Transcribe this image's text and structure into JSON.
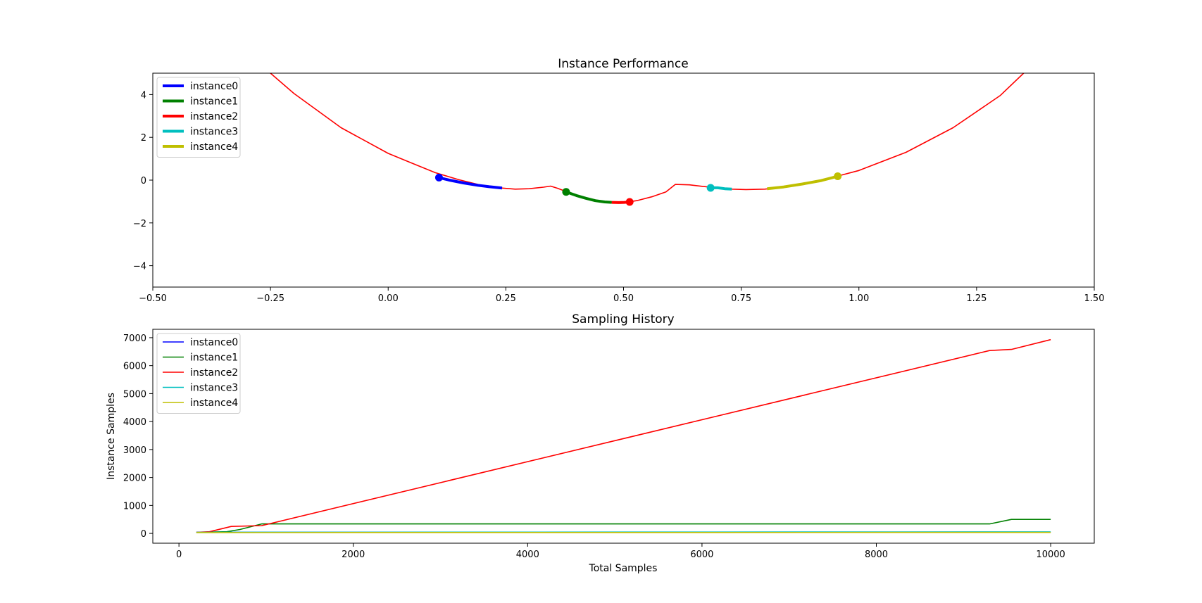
{
  "chart_data": [
    {
      "type": "line",
      "title": "Instance Performance",
      "xlabel": "",
      "ylabel": "",
      "xlim": [
        -0.5,
        1.5
      ],
      "ylim": [
        -5,
        5
      ],
      "xticks": [
        "−0.50",
        "−0.25",
        "0.00",
        "0.25",
        "0.50",
        "0.75",
        "1.00",
        "1.25",
        "1.50"
      ],
      "xtick_values": [
        -0.5,
        -0.25,
        0.0,
        0.25,
        0.5,
        0.75,
        1.0,
        1.25,
        1.5
      ],
      "yticks": [
        "−4",
        "−2",
        "0",
        "2",
        "4"
      ],
      "ytick_values": [
        -4,
        -2,
        0,
        2,
        4
      ],
      "grid": false,
      "legend_position": "top-left",
      "curve": {
        "color": "#ff0000",
        "x": [
          -0.5,
          -0.25,
          -0.2,
          -0.1,
          0.0,
          0.05,
          0.1,
          0.15,
          0.2,
          0.24,
          0.27,
          0.3,
          0.33,
          0.345,
          0.36,
          0.38,
          0.4,
          0.43,
          0.46,
          0.49,
          0.51,
          0.53,
          0.56,
          0.59,
          0.61,
          0.64,
          0.67,
          0.7,
          0.73,
          0.76,
          0.8,
          0.85,
          0.9,
          0.95,
          1.0,
          1.1,
          1.2,
          1.3,
          1.35,
          1.5
        ],
        "y": [
          9.0,
          5.0,
          4.05,
          2.45,
          1.25,
          0.8,
          0.35,
          0.02,
          -0.25,
          -0.37,
          -0.42,
          -0.4,
          -0.33,
          -0.28,
          -0.38,
          -0.55,
          -0.72,
          -0.9,
          -1.02,
          -1.05,
          -1.02,
          -0.95,
          -0.78,
          -0.55,
          -0.2,
          -0.22,
          -0.3,
          -0.36,
          -0.42,
          -0.44,
          -0.42,
          -0.3,
          -0.1,
          0.16,
          0.45,
          1.3,
          2.45,
          3.95,
          5.0,
          8.5
        ]
      },
      "series": [
        {
          "name": "instance0",
          "color": "#0000ff",
          "x": [
            0.108,
            0.13,
            0.16,
            0.19,
            0.215,
            0.242
          ],
          "y": [
            0.12,
            0.0,
            -0.13,
            -0.24,
            -0.31,
            -0.37
          ],
          "marker": [
            0.108,
            0.12
          ]
        },
        {
          "name": "instance1",
          "color": "#008000",
          "x": [
            0.378,
            0.4,
            0.42,
            0.44,
            0.46,
            0.475
          ],
          "y": [
            -0.55,
            -0.72,
            -0.85,
            -0.96,
            -1.02,
            -1.04
          ],
          "marker": [
            0.378,
            -0.55
          ]
        },
        {
          "name": "instance2",
          "color": "#ff0000",
          "x": [
            0.475,
            0.49,
            0.502,
            0.513
          ],
          "y": [
            -1.04,
            -1.05,
            -1.04,
            -1.02
          ],
          "marker": [
            0.513,
            -1.02
          ]
        },
        {
          "name": "instance3",
          "color": "#00bfbf",
          "x": [
            0.685,
            0.7,
            0.715,
            0.73
          ],
          "y": [
            -0.36,
            -0.36,
            -0.4,
            -0.42
          ],
          "marker": [
            0.685,
            -0.36
          ]
        },
        {
          "name": "instance4",
          "color": "#bfbf00",
          "x": [
            0.805,
            0.84,
            0.88,
            0.92,
            0.955
          ],
          "y": [
            -0.4,
            -0.32,
            -0.18,
            -0.02,
            0.18
          ],
          "marker": [
            0.955,
            0.18
          ]
        }
      ]
    },
    {
      "type": "line",
      "title": "Sampling History",
      "xlabel": "Total Samples",
      "ylabel": "Instance Samples",
      "xlim": [
        -300,
        10500
      ],
      "ylim": [
        -350,
        7300
      ],
      "xticks": [
        "0",
        "2000",
        "4000",
        "6000",
        "8000",
        "10000"
      ],
      "xtick_values": [
        0,
        2000,
        4000,
        6000,
        8000,
        10000
      ],
      "yticks": [
        "0",
        "1000",
        "2000",
        "3000",
        "4000",
        "5000",
        "6000",
        "7000"
      ],
      "ytick_values": [
        0,
        1000,
        2000,
        3000,
        4000,
        5000,
        6000,
        7000
      ],
      "grid": false,
      "legend_position": "top-left",
      "series": [
        {
          "name": "instance0",
          "color": "#0000ff",
          "x": [
            200,
            10000
          ],
          "y": [
            40,
            40
          ]
        },
        {
          "name": "instance1",
          "color": "#008000",
          "x": [
            200,
            550,
            700,
            950,
            9300,
            9550,
            10000
          ],
          "y": [
            40,
            60,
            140,
            340,
            340,
            500,
            500
          ]
        },
        {
          "name": "instance2",
          "color": "#ff0000",
          "x": [
            200,
            350,
            600,
            950,
            9300,
            9550,
            10000
          ],
          "y": [
            40,
            60,
            250,
            280,
            6540,
            6580,
            6930
          ]
        },
        {
          "name": "instance3",
          "color": "#00bfbf",
          "x": [
            200,
            10000
          ],
          "y": [
            40,
            55
          ]
        },
        {
          "name": "instance4",
          "color": "#bfbf00",
          "x": [
            200,
            10000
          ],
          "y": [
            30,
            35
          ]
        }
      ]
    }
  ]
}
